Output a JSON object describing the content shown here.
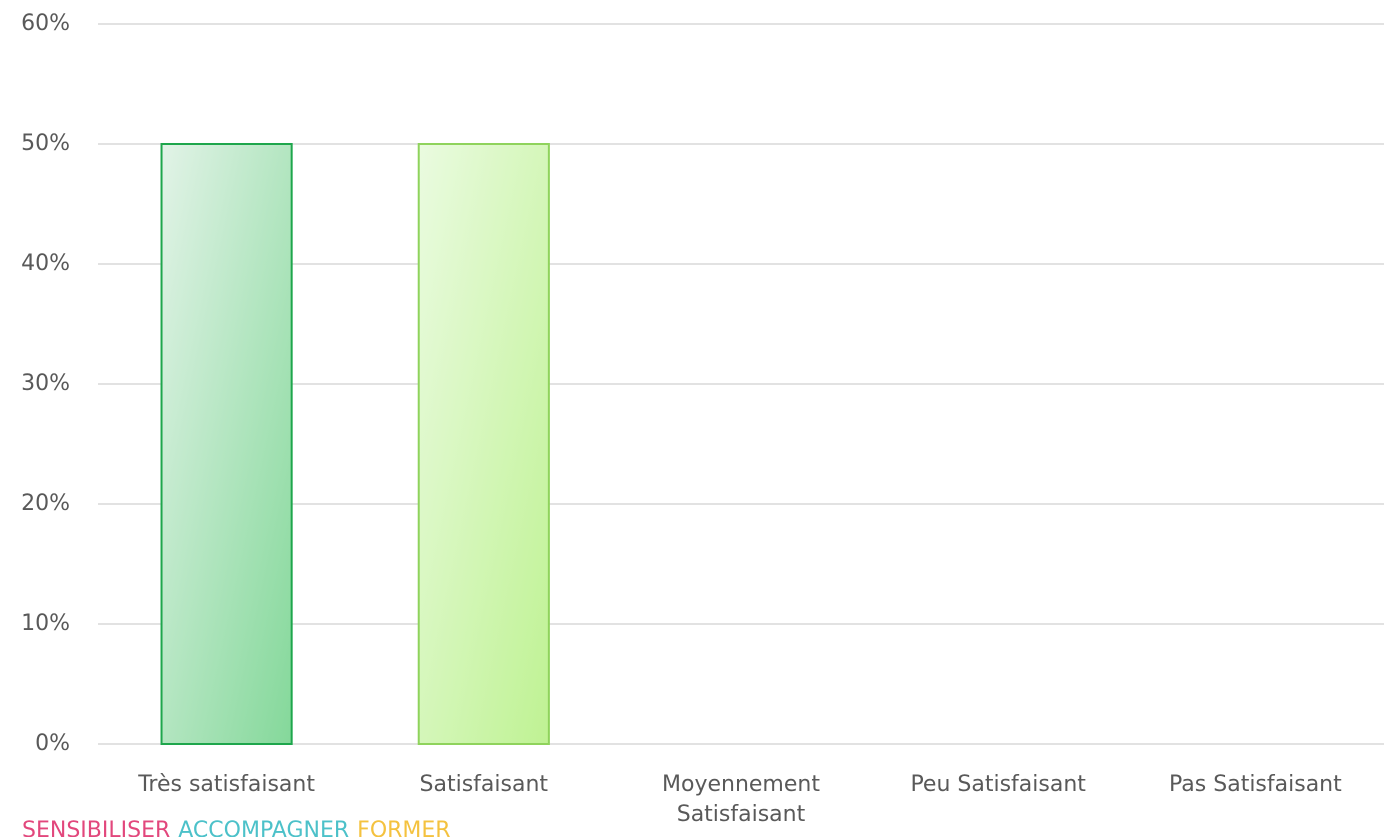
{
  "chart_data": {
    "type": "bar",
    "categories": [
      "Très satisfaisant",
      "Satisfaisant",
      "Moyennement Satisfaisant",
      "Peu Satisfaisant",
      "Pas Satisfaisant"
    ],
    "values": [
      50,
      50,
      0,
      0,
      0
    ],
    "bar_styles": [
      {
        "fill_start": "#e2f3e7",
        "fill_end": "#84d89a",
        "stroke": "#1ea64c"
      },
      {
        "fill_start": "#eafbe0",
        "fill_end": "#bff293",
        "stroke": "#8fd35c"
      }
    ],
    "ylim": [
      0,
      60
    ],
    "yticks": [
      {
        "value": 0,
        "label": "0%"
      },
      {
        "value": 10,
        "label": "10%"
      },
      {
        "value": 20,
        "label": "20%"
      },
      {
        "value": 30,
        "label": "30%"
      },
      {
        "value": 40,
        "label": "40%"
      },
      {
        "value": 50,
        "label": "50%"
      },
      {
        "value": 60,
        "label": "60%"
      }
    ],
    "grid": true
  },
  "footer": [
    {
      "text": "SENSIBILISER",
      "color": "#e2477c"
    },
    {
      "text": "ACCOMPAGNER",
      "color": "#4cc1c9"
    },
    {
      "text": "FORMER",
      "color": "#f4c23f"
    }
  ]
}
